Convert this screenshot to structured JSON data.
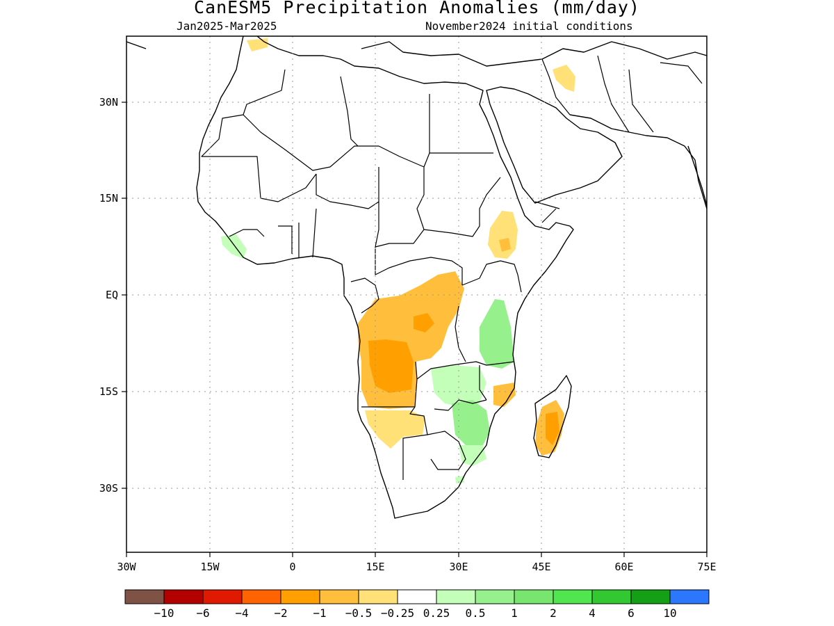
{
  "title": "CanESM5 Precipitation Anomalies (mm/day)",
  "period": "Jan2025-Mar2025",
  "initial_conditions": "November2024 initial conditions",
  "axes": {
    "lon_labels": [
      "30W",
      "15W",
      "0",
      "15E",
      "30E",
      "45E",
      "60E",
      "75E"
    ],
    "lat_labels": [
      "30N",
      "15N",
      "EQ",
      "15S",
      "30S"
    ]
  },
  "colorbar": {
    "colors": [
      "#7f5246",
      "#b50000",
      "#e01a00",
      "#ff6400",
      "#ffa000",
      "#ffbe3c",
      "#ffe178",
      "#ffffff",
      "#c3ffb9",
      "#96f08c",
      "#78e66e",
      "#50e650",
      "#32c832",
      "#14a014",
      "#2b78ff"
    ],
    "labels": [
      "-10",
      "-6",
      "-4",
      "-2",
      "-1",
      "-0.5",
      "-0.25",
      "0.25",
      "0.5",
      "1",
      "2",
      "4",
      "6",
      "10"
    ]
  },
  "chart_data": {
    "type": "map",
    "variable": "Precipitation Anomalies",
    "units": "mm/day",
    "lon_range": [
      -30,
      75
    ],
    "lat_range": [
      -40,
      40
    ],
    "anomaly_regions": [
      {
        "region": "Angola and western DR Congo",
        "category": "-2 to -1",
        "color": "#ffa000"
      },
      {
        "region": "Southern DR Congo / Congo basin",
        "category": "-1 to -0.5",
        "color": "#ffbe3c"
      },
      {
        "region": "Namibia / Botswana",
        "category": "-0.5 to -0.25",
        "color": "#ffe178"
      },
      {
        "region": "Ethiopian highlands",
        "category": "-0.5 to -0.25",
        "color": "#ffe178"
      },
      {
        "region": "Madagascar west coast",
        "category": "-2 to -1",
        "color": "#ffa000"
      },
      {
        "region": "Northern Mozambique coast",
        "category": "-1 to -0.5",
        "color": "#ffbe3c"
      },
      {
        "region": "Iraq / Iran border",
        "category": "-0.5 to -0.25",
        "color": "#ffe178"
      },
      {
        "region": "Tanzania / Kenya",
        "category": "0.5 to 1",
        "color": "#96f08c"
      },
      {
        "region": "Zambia / Malawi",
        "category": "0.25 to 0.5",
        "color": "#c3ffb9"
      },
      {
        "region": "Zimbabwe / Mozambique",
        "category": "0.5 to 1",
        "color": "#96f08c"
      },
      {
        "region": "Liberia / Sierra Leone",
        "category": "0.25 to 0.5",
        "color": "#c3ffb9"
      }
    ]
  }
}
